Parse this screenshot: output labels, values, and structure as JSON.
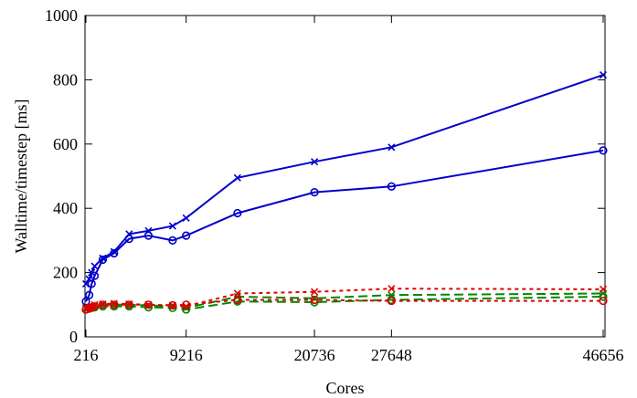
{
  "chart_data": {
    "type": "line",
    "xlabel": "Cores",
    "ylabel": "Walltime/timestep [ms]",
    "xlim": [
      0,
      46656
    ],
    "ylim": [
      0,
      1000
    ],
    "xticks": [
      216,
      9216,
      20736,
      27648,
      46656
    ],
    "yticks": [
      0,
      200,
      400,
      600,
      800,
      1000
    ],
    "grid": false,
    "series": [
      {
        "color": "#0000cc",
        "dash": "solid",
        "marker": "x",
        "x": [
          216,
          512,
          729,
          1000,
          1728,
          2744,
          4096,
          5832,
          8000,
          9216,
          13824,
          20736,
          27648,
          46656
        ],
        "y": [
          165,
          180,
          200,
          220,
          245,
          265,
          320,
          330,
          345,
          370,
          495,
          545,
          590,
          815
        ]
      },
      {
        "color": "#0000cc",
        "dash": "solid",
        "marker": "o",
        "x": [
          216,
          512,
          729,
          1000,
          1728,
          2744,
          4096,
          5832,
          8000,
          9216,
          13824,
          20736,
          27648,
          46656
        ],
        "y": [
          110,
          130,
          165,
          190,
          240,
          260,
          305,
          315,
          300,
          315,
          385,
          450,
          468,
          580
        ]
      },
      {
        "color": "#008800",
        "dash": "dashed",
        "marker": "x",
        "x": [
          216,
          512,
          729,
          1000,
          1728,
          2744,
          4096,
          5832,
          8000,
          9216,
          13824,
          20736,
          27648,
          46656
        ],
        "y": [
          88,
          90,
          92,
          95,
          98,
          100,
          100,
          98,
          95,
          90,
          125,
          120,
          130,
          135
        ]
      },
      {
        "color": "#008800",
        "dash": "dashed",
        "marker": "o",
        "x": [
          216,
          512,
          729,
          1000,
          1728,
          2744,
          4096,
          5832,
          8000,
          9216,
          13824,
          20736,
          27648,
          46656
        ],
        "y": [
          85,
          88,
          90,
          92,
          95,
          95,
          95,
          92,
          90,
          85,
          110,
          108,
          115,
          125
        ]
      },
      {
        "color": "#dd0000",
        "dash": "dotted",
        "marker": "x",
        "x": [
          216,
          512,
          729,
          1000,
          1728,
          2744,
          4096,
          5832,
          8000,
          9216,
          13824,
          20736,
          27648,
          46656
        ],
        "y": [
          90,
          92,
          95,
          100,
          102,
          104,
          102,
          100,
          98,
          95,
          135,
          140,
          150,
          148
        ]
      },
      {
        "color": "#dd0000",
        "dash": "dotted",
        "marker": "o",
        "x": [
          216,
          512,
          729,
          1000,
          1728,
          2744,
          4096,
          5832,
          8000,
          9216,
          13824,
          20736,
          27648,
          46656
        ],
        "y": [
          85,
          88,
          92,
          95,
          100,
          100,
          100,
          100,
          98,
          100,
          115,
          115,
          112,
          112
        ]
      }
    ]
  }
}
